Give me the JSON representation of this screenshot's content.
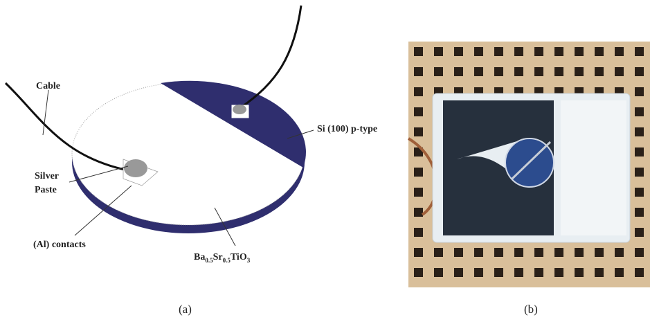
{
  "labels": {
    "cable": "Cable",
    "si": "Si (100) p-type",
    "silver_paste": [
      "Silver",
      "Paste"
    ],
    "contacts": "(Al) contacts",
    "formula": [
      {
        "text": "Ba"
      },
      {
        "text": "0.5",
        "sub": true
      },
      {
        "text": "Sr"
      },
      {
        "text": "0.5",
        "sub": true
      },
      {
        "text": "TiO"
      },
      {
        "text": "3",
        "sub": true
      }
    ]
  },
  "captions": {
    "a": "(a)",
    "b": "(b)"
  }
}
